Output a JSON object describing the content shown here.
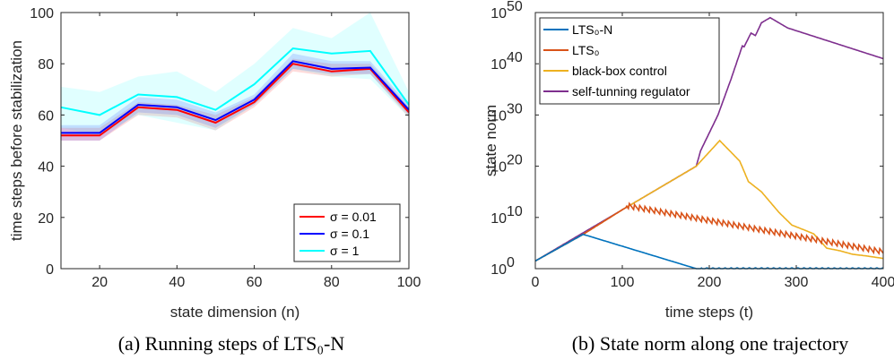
{
  "captions": {
    "a": "(a) Running steps of LTS₀-N",
    "b": "(b) State norm along one trajectory"
  },
  "chart_data": [
    {
      "type": "line",
      "xlabel": "state dimension (n)",
      "ylabel": "time steps before stabilization",
      "xlim": [
        10,
        100
      ],
      "ylim": [
        0,
        100
      ],
      "xticks": [
        20,
        40,
        60,
        80,
        100
      ],
      "yticks": [
        0,
        20,
        40,
        60,
        80,
        100
      ],
      "legend_position": "bottom-right",
      "x": [
        10,
        20,
        30,
        40,
        50,
        60,
        70,
        80,
        90,
        100
      ],
      "series": [
        {
          "name": "σ = 0.01",
          "color": "#ff0000",
          "values": [
            52,
            52,
            63,
            62,
            57,
            65,
            80,
            77,
            78,
            61
          ],
          "band_lower": [
            50,
            50,
            60,
            59,
            54,
            63,
            77,
            75,
            76,
            59
          ],
          "band_upper": [
            55,
            55,
            65,
            64,
            60,
            67,
            82,
            80,
            80,
            63
          ]
        },
        {
          "name": "σ = 0.1",
          "color": "#0000ff",
          "values": [
            53,
            53,
            64,
            63,
            58,
            66,
            81,
            78,
            78.5,
            62
          ],
          "band_lower": [
            50,
            50,
            61,
            60,
            55,
            64,
            78,
            76,
            76,
            60
          ],
          "band_upper": [
            56,
            56,
            67,
            66,
            61,
            68,
            84,
            81,
            81,
            64
          ]
        },
        {
          "name": "σ = 1",
          "color": "#00ffff",
          "values": [
            63,
            60,
            68,
            67,
            62,
            72,
            86,
            84,
            85,
            64
          ],
          "band_lower": [
            55,
            52,
            60,
            57,
            54,
            64,
            78,
            75,
            74,
            59
          ],
          "band_upper": [
            71,
            69,
            75,
            77,
            69,
            80,
            94,
            90,
            100,
            69
          ]
        }
      ]
    },
    {
      "type": "line",
      "xlabel": "time steps (t)",
      "ylabel": "state norm",
      "yscale": "log",
      "xlim": [
        0,
        400
      ],
      "ylim_log10": [
        0,
        50
      ],
      "xticks": [
        0,
        100,
        200,
        300,
        400
      ],
      "yticks_log10": [
        0,
        10,
        20,
        30,
        40,
        50
      ],
      "ytick_base": "10",
      "legend_position": "top-left",
      "series": [
        {
          "name": "LTS₀-N",
          "color": "#0072bd",
          "log10_points": [
            [
              0,
              1.5
            ],
            [
              55,
              6.7
            ],
            [
              185,
              0
            ],
            [
              200,
              0
            ],
            [
              400,
              0
            ]
          ]
        },
        {
          "name": "LTS₀",
          "color": "#d95319",
          "log10_points": [
            [
              0,
              1.5
            ],
            [
              55,
              6.7
            ],
            [
              100,
              11.5
            ],
            [
              105,
              12
            ],
            [
              400,
              3
            ]
          ]
        },
        {
          "name": "black-box control",
          "color": "#edb120",
          "log10_points": [
            [
              0,
              1.5
            ],
            [
              55,
              6.7
            ],
            [
              100,
              11.5
            ],
            [
              185,
              20
            ],
            [
              212,
              25
            ],
            [
              235,
              21
            ],
            [
              245,
              17
            ],
            [
              260,
              15
            ],
            [
              280,
              11
            ],
            [
              295,
              8.5
            ],
            [
              310,
              7.5
            ],
            [
              320,
              6.8
            ],
            [
              335,
              4
            ],
            [
              350,
              3.5
            ],
            [
              365,
              2.8
            ],
            [
              380,
              2.5
            ],
            [
              400,
              2
            ]
          ]
        },
        {
          "name": "self-tunning regulator",
          "color": "#7e2f8e",
          "log10_points": [
            [
              0,
              1.5
            ],
            [
              185,
              20
            ],
            [
              190,
              23
            ],
            [
              210,
              30
            ],
            [
              225,
              37
            ],
            [
              238,
              43.5
            ],
            [
              240,
              43.3
            ],
            [
              248,
              46
            ],
            [
              253,
              45.5
            ],
            [
              260,
              48
            ],
            [
              265,
              48.5
            ],
            [
              270,
              49
            ],
            [
              290,
              47
            ],
            [
              400,
              41
            ]
          ]
        }
      ]
    }
  ]
}
